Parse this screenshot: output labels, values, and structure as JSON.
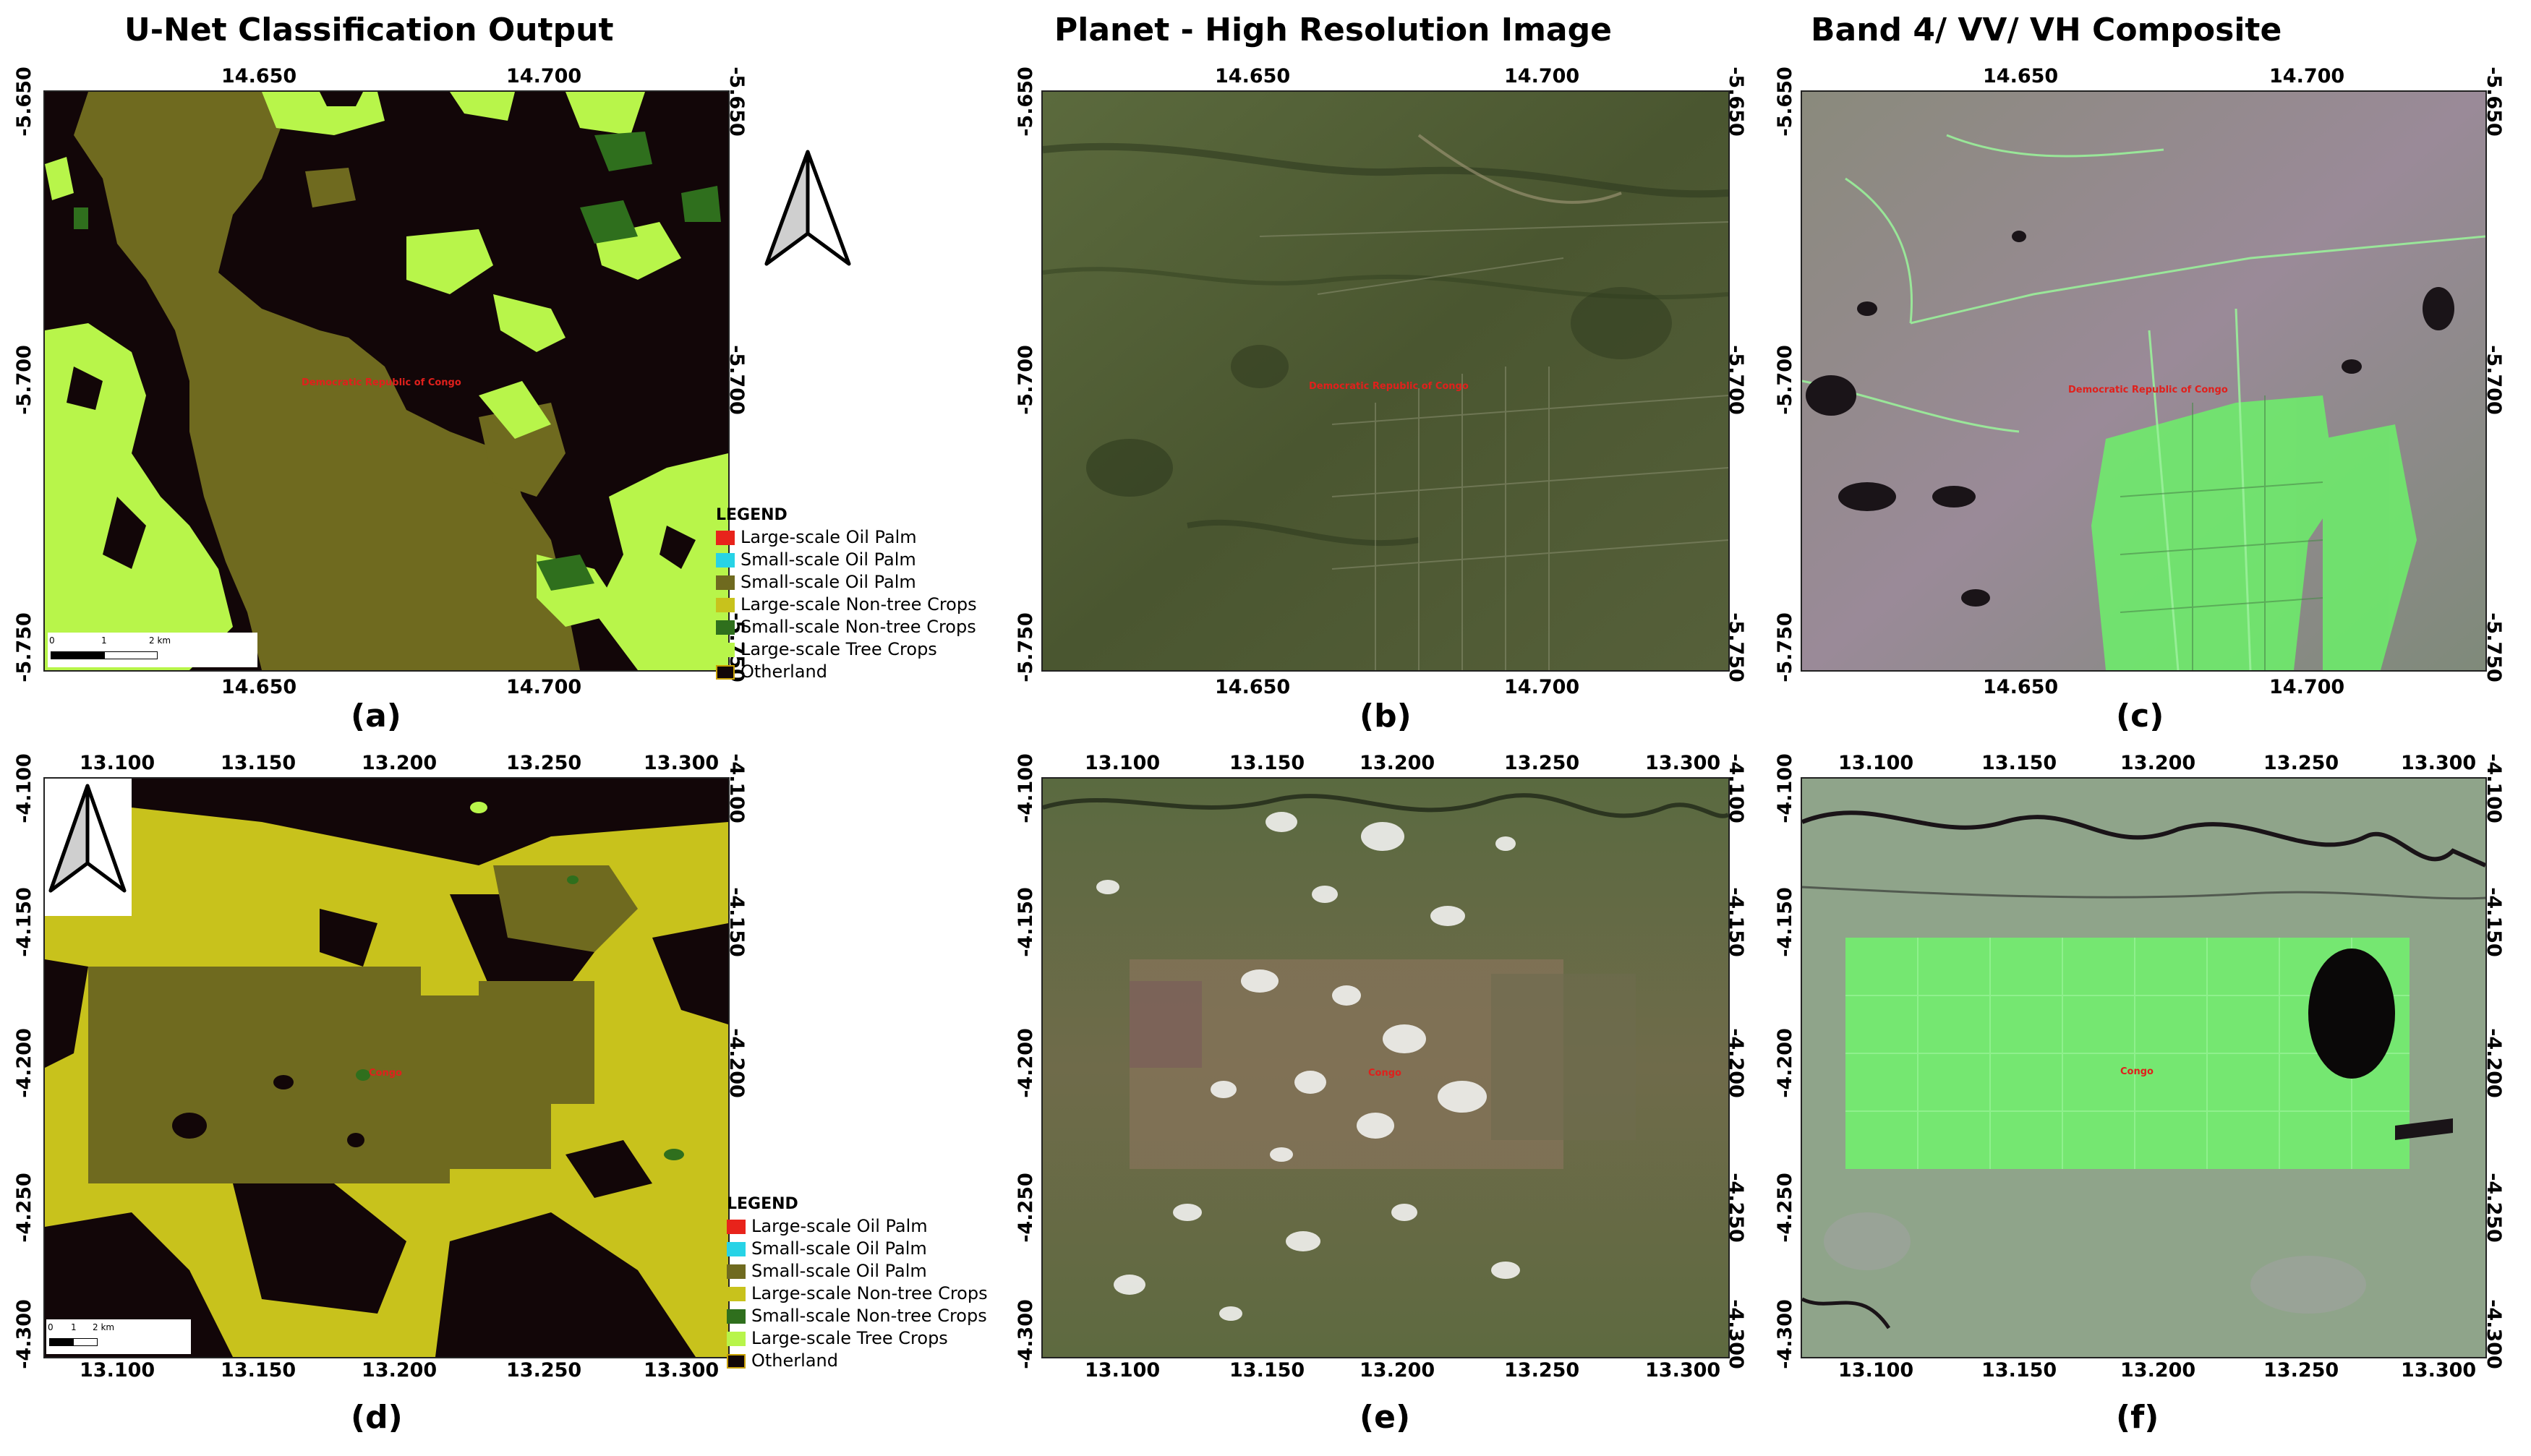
{
  "titles": {
    "col1": "U-Net Classification Output",
    "col2": "Planet - High Resolution Image",
    "col3": "Band 4/ VV/ VH Composite"
  },
  "panels": {
    "a": "(a)",
    "b": "(b)",
    "c": "(c)",
    "d": "(d)",
    "e": "(e)",
    "f": "(f)"
  },
  "row1": {
    "x_ticks": [
      "14.650",
      "14.700"
    ],
    "y_ticks": [
      "-5.650",
      "-5.700",
      "-5.750"
    ],
    "place": "Democratic Republic of Congo",
    "scalebar": [
      "0",
      "1",
      "2 km"
    ]
  },
  "row2": {
    "x_ticks": [
      "13.100",
      "13.150",
      "13.200",
      "13.250",
      "13.300"
    ],
    "y_ticks": [
      "-4.100",
      "-4.150",
      "-4.200",
      "-4.250",
      "-4.300"
    ],
    "place": "Congo",
    "scalebar": [
      "0",
      "1",
      "2 km"
    ]
  },
  "legend": {
    "title": "LEGEND",
    "items": [
      {
        "label": "Large-scale Oil Palm",
        "color": "#e8231b"
      },
      {
        "label": "Small-scale Oil Palm",
        "color": "#27d3e6"
      },
      {
        "label": "Small-scale Oil Palm",
        "color": "#6f6a1f"
      },
      {
        "label": "Large-scale Non-tree Crops",
        "color": "#c8c21c"
      },
      {
        "label": "Small-scale Non-tree Crops",
        "color": "#2f6f1d"
      },
      {
        "label": "Large-scale Tree Crops",
        "color": "#b8f54a"
      },
      {
        "label": "Otherland",
        "color": "#120608"
      }
    ]
  },
  "colors": {
    "otherland": "#120608",
    "small_oil_palm": "#6f6a1f",
    "large_nontree": "#c8c21c",
    "small_nontree": "#2f6f1d",
    "large_tree": "#b8f54a",
    "planet_base": "#4d5a33",
    "composite_base": "#7a7a78",
    "composite_green": "#6cf06a"
  }
}
